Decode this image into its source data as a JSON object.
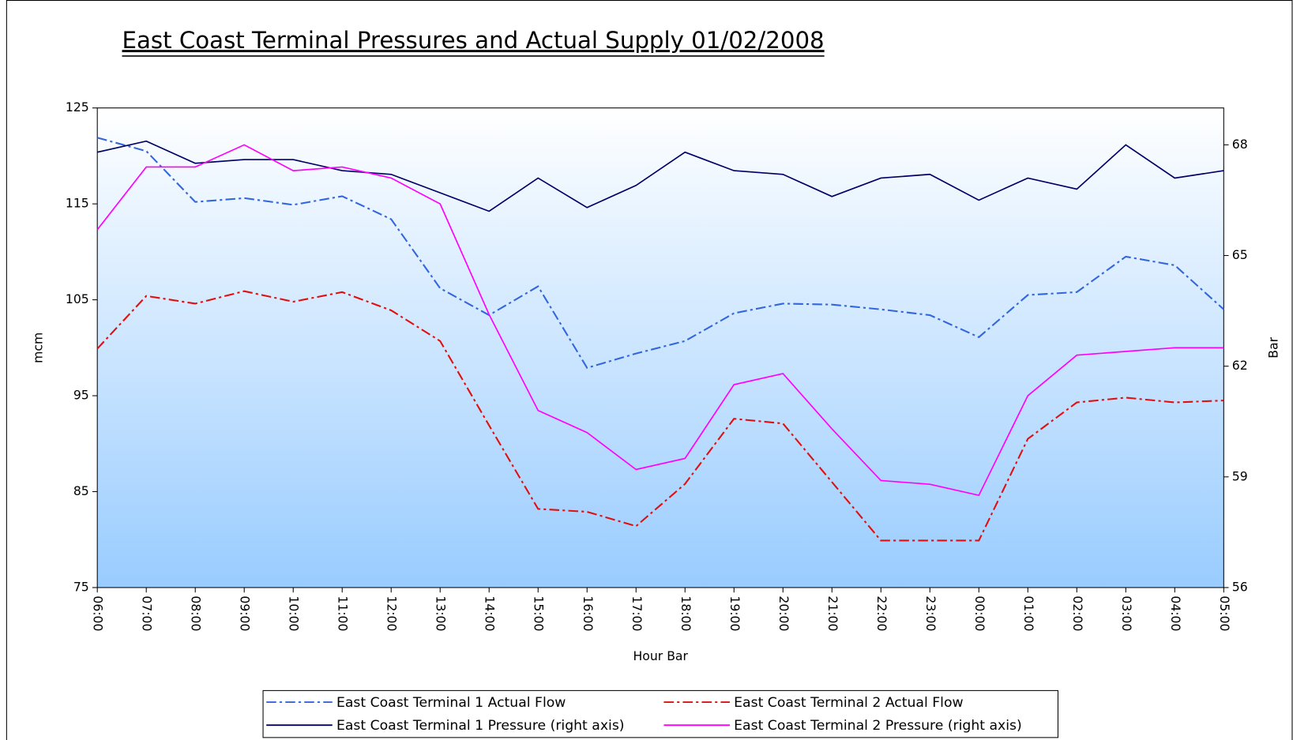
{
  "chart_data": {
    "type": "line",
    "title": "East Coast Terminal Pressures and Actual Supply 01/02/2008",
    "x_label": "Hour Bar",
    "y_label": "mcm",
    "y2_label": "Bar",
    "categories": [
      "06:00",
      "07:00",
      "08:00",
      "09:00",
      "10:00",
      "11:00",
      "12:00",
      "13:00",
      "14:00",
      "15:00",
      "16:00",
      "17:00",
      "18:00",
      "19:00",
      "20:00",
      "21:00",
      "22:00",
      "23:00",
      "00:00",
      "01:00",
      "02:00",
      "03:00",
      "04:00",
      "05:00"
    ],
    "ylim": [
      75,
      125
    ],
    "yticks": [
      75,
      85,
      95,
      105,
      115,
      125
    ],
    "y2lim": [
      56,
      69
    ],
    "y2ticks": [
      56,
      59,
      62,
      65,
      68
    ],
    "legend": "bottom",
    "series": [
      {
        "name": "East Coast Terminal 1 Actual Flow",
        "color": "#3366dd",
        "dash": "dashdot",
        "values": [
          121.9,
          120.5,
          115.2,
          115.6,
          114.9,
          115.8,
          113.4,
          106.2,
          103.4,
          106.4,
          97.9,
          99.4,
          100.7,
          103.6,
          104.6,
          104.5,
          104.0,
          103.4,
          101.1,
          105.5,
          105.8,
          109.5,
          108.6,
          104.0
        ]
      },
      {
        "name": "East Coast Terminal 2 Actual Flow",
        "color": "#e01010",
        "dash": "dashdot",
        "values": [
          99.9,
          105.4,
          104.6,
          105.9,
          104.8,
          105.8,
          103.9,
          100.7,
          91.9,
          83.2,
          82.9,
          81.4,
          85.8,
          92.6,
          92.1,
          86.0,
          79.9,
          79.9,
          79.9,
          90.5,
          94.3,
          94.8,
          94.3,
          94.5
        ]
      },
      {
        "name": "East Coast Terminal 1 Pressure (right axis)",
        "color": "#000066",
        "dash": "solid",
        "axis": "y2",
        "values": [
          67.8,
          68.1,
          67.5,
          67.6,
          67.6,
          67.3,
          67.2,
          66.7,
          66.2,
          67.1,
          66.3,
          66.9,
          67.8,
          67.3,
          67.2,
          66.6,
          67.1,
          67.2,
          66.5,
          67.1,
          66.8,
          68.0,
          67.1,
          67.3
        ]
      },
      {
        "name": "East Coast Terminal 2 Pressure (right axis)",
        "color": "#ff00ff",
        "dash": "solid",
        "axis": "y2",
        "values": [
          65.7,
          67.4,
          67.4,
          68.0,
          67.3,
          67.4,
          67.1,
          66.4,
          63.4,
          60.8,
          60.2,
          59.2,
          59.5,
          61.5,
          61.8,
          60.3,
          58.9,
          58.8,
          58.5,
          61.2,
          62.3,
          62.4,
          62.5,
          62.5
        ]
      }
    ]
  }
}
